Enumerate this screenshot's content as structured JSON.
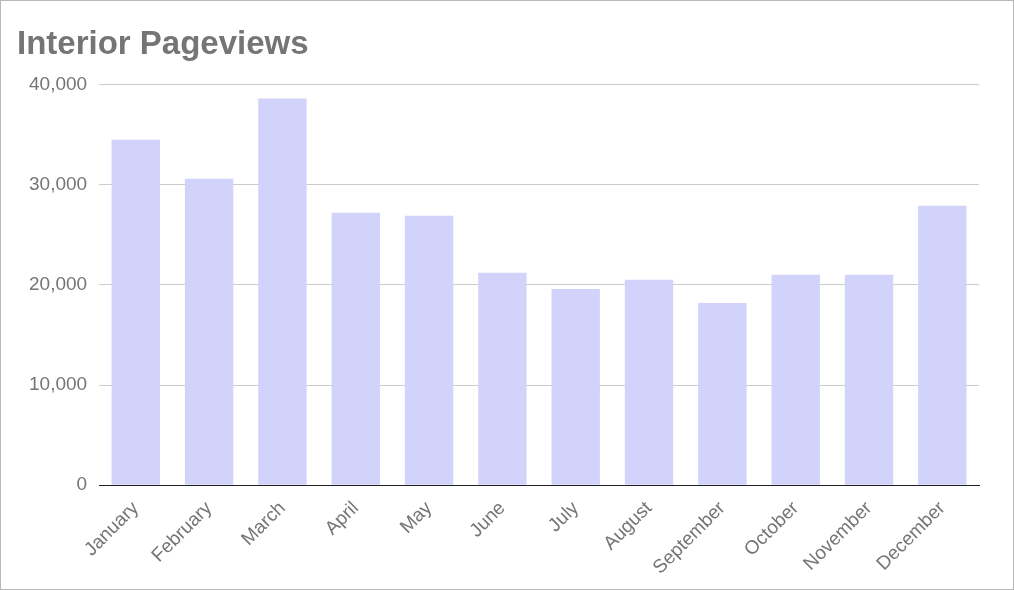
{
  "chart_data": {
    "type": "bar",
    "title": "Interior Pageviews",
    "categories": [
      "January",
      "February",
      "March",
      "April",
      "May",
      "June",
      "July",
      "August",
      "September",
      "October",
      "November",
      "December"
    ],
    "values": [
      34500,
      30600,
      38600,
      27200,
      26900,
      21200,
      19600,
      20500,
      18200,
      21000,
      21000,
      27900
    ],
    "color": "#d1d3fa",
    "ylim": [
      0,
      40000
    ],
    "yticks": [
      0,
      {
        "value": 10000,
        "label": "10,000"
      },
      {
        "value": 20000,
        "label": "20,000"
      },
      {
        "value": 30000,
        "label": "30,000"
      },
      {
        "value": 40000,
        "label": "40,000"
      }
    ],
    "grid": true
  }
}
